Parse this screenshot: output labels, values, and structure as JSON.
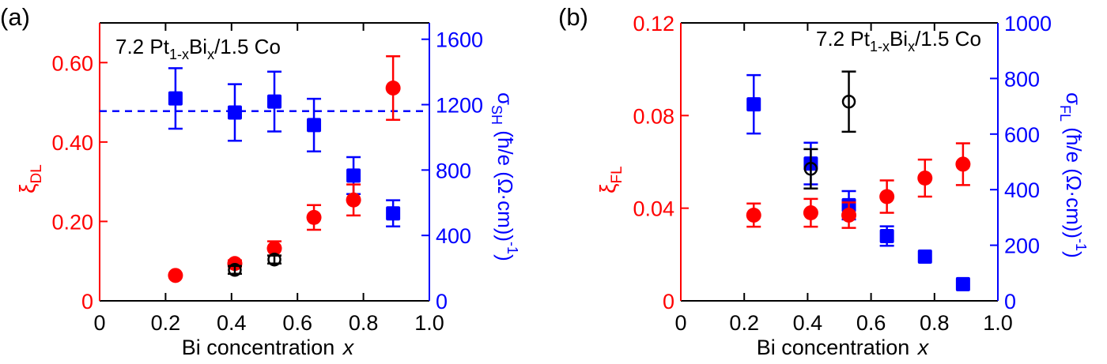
{
  "figure": {
    "panels": [
      {
        "label": "(a)",
        "annotation": {
          "prefix": "7.2 Pt",
          "sub1": "1-x",
          "mid": "Bi",
          "sub2": "x",
          "suffix": "/1.5 Co"
        }
      },
      {
        "label": "(b)",
        "annotation": {
          "prefix": "7.2 Pt",
          "sub1": "1-x",
          "mid": "Bi",
          "sub2": "x",
          "suffix": "/1.5 Co"
        }
      }
    ]
  },
  "colors": {
    "left_axis": "#ff0000",
    "right_axis": "#0000ff",
    "open_marker": "#000000",
    "frame": "#000000"
  },
  "chart_data": [
    {
      "type": "scatter",
      "panel": "(a)",
      "title": "",
      "annotation": "7.2 Pt1-xBix/1.5 Co",
      "xlabel": "Bi concentration x",
      "xlim": [
        0,
        1.0
      ],
      "xticks": [
        "0",
        "0.2",
        "0.4",
        "0.6",
        "0.8",
        "1.0"
      ],
      "ylabel_left": "ξDL",
      "ylim_left": [
        0,
        0.7
      ],
      "yticks_left": [
        "0",
        "0.20",
        "0.40",
        "0.60"
      ],
      "ylabel_right": "σSH (ħ/e (Ω·cm)^-1)",
      "ylim_right": [
        0,
        1700
      ],
      "yticks_right": [
        "0",
        "400",
        "800",
        "1200",
        "1600"
      ],
      "grid": false,
      "reference_line": {
        "axis": "right",
        "y": 1160,
        "style": "dashed",
        "color": "#0000ff"
      },
      "series": [
        {
          "name": "ξDL (filled circles)",
          "axis": "left",
          "marker": "filled-circle",
          "color": "#ff0000",
          "x": [
            0.23,
            0.41,
            0.53,
            0.65,
            0.77,
            0.89
          ],
          "y": [
            0.064,
            0.094,
            0.132,
            0.21,
            0.254,
            0.536
          ],
          "err": [
            0,
            0.008,
            0.018,
            0.031,
            0.039,
            0.08
          ]
        },
        {
          "name": "ξDL (open circles)",
          "axis": "left",
          "marker": "open-circle",
          "color": "#000000",
          "x": [
            0.41,
            0.53
          ],
          "y": [
            0.078,
            0.104
          ],
          "err": [
            0.01,
            0.01
          ]
        },
        {
          "name": "σSH",
          "axis": "right",
          "marker": "filled-square",
          "color": "#0000ff",
          "x": [
            0.23,
            0.41,
            0.53,
            0.65,
            0.77,
            0.89
          ],
          "y": [
            1238,
            1152,
            1219,
            1075,
            766,
            535
          ],
          "err": [
            185,
            173,
            183,
            161,
            113,
            80
          ]
        }
      ]
    },
    {
      "type": "scatter",
      "panel": "(b)",
      "title": "",
      "annotation": "7.2 Pt1-xBix/1.5 Co",
      "xlabel": "Bi concentration x",
      "xlim": [
        0,
        1.0
      ],
      "xticks": [
        "0",
        "0.2",
        "0.4",
        "0.6",
        "0.8",
        "1.0"
      ],
      "ylabel_left": "ξFL",
      "ylim_left": [
        0,
        0.12
      ],
      "yticks_left": [
        "0",
        "0.04",
        "0.08",
        "0.12"
      ],
      "ylabel_right": "σFL (ħ/e (Ω·cm)^-1)",
      "ylim_right": [
        0,
        1000
      ],
      "yticks_right": [
        "0",
        "200",
        "400",
        "600",
        "800",
        "1000"
      ],
      "grid": false,
      "series": [
        {
          "name": "ξFL (filled circles)",
          "axis": "left",
          "marker": "filled-circle",
          "color": "#ff0000",
          "x": [
            0.23,
            0.41,
            0.53,
            0.65,
            0.77,
            0.89
          ],
          "y": [
            0.037,
            0.038,
            0.037,
            0.045,
            0.053,
            0.059
          ],
          "err": [
            0.005,
            0.006,
            0.0055,
            0.007,
            0.008,
            0.009
          ]
        },
        {
          "name": "ξFL (open circles)",
          "axis": "left",
          "marker": "open-circle",
          "color": "#000000",
          "x": [
            0.41,
            0.53
          ],
          "y": [
            0.057,
            0.086
          ],
          "err": [
            0.0085,
            0.013
          ]
        },
        {
          "name": "σFL",
          "axis": "right",
          "marker": "filled-square",
          "color": "#0000ff",
          "x": [
            0.23,
            0.41,
            0.53,
            0.65,
            0.77,
            0.89
          ],
          "y": [
            707,
            494,
            344,
            233,
            159,
            60
          ],
          "err": [
            105,
            75,
            51,
            35,
            0,
            0
          ]
        }
      ]
    }
  ]
}
